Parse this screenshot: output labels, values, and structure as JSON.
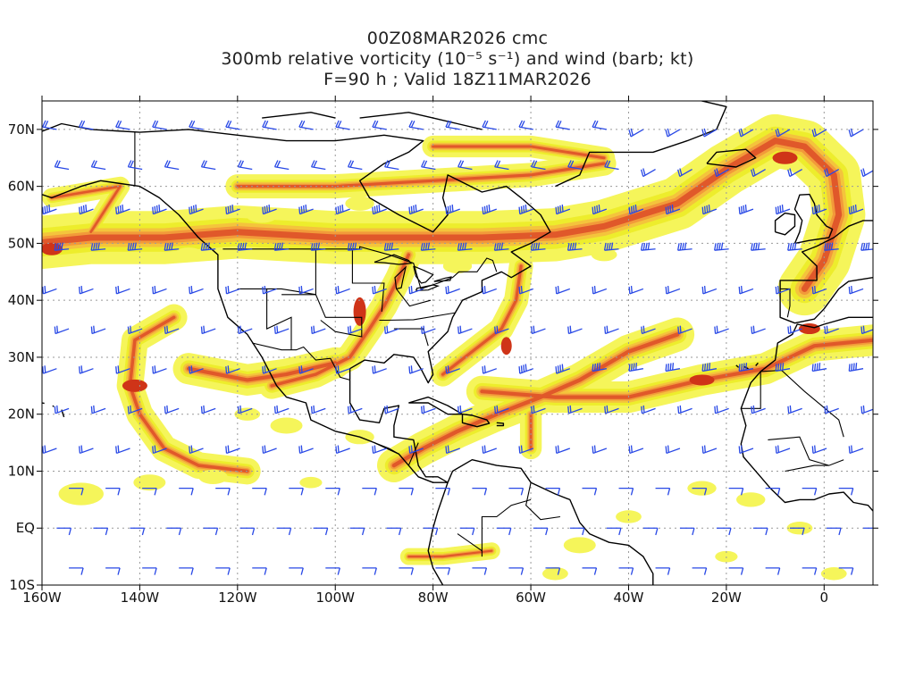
{
  "title": {
    "line1": "00Z08MAR2026 cmc",
    "line2": "300mb relative vorticity (10⁻⁵ s⁻¹) and wind (barb; kt)",
    "line3": "F=90 h ; Valid 18Z11MAR2026"
  },
  "colors": {
    "shade_light": "#f5f55a",
    "shade_yellow": "#eded2c",
    "shade_amber": "#f4c43c",
    "shade_orange": "#f29a3a",
    "shade_dark": "#e0582a",
    "shade_max": "#cf3418",
    "coast": "#000000",
    "barb": "#2848e6",
    "grid": "#9a9a9a"
  },
  "map": {
    "projection": "cylindrical",
    "lon_range": [
      -160,
      10
    ],
    "lat_range": [
      -10,
      75
    ],
    "grid": true,
    "x_ticks": [
      {
        "lon": -160,
        "label": "160W"
      },
      {
        "lon": -140,
        "label": "140W"
      },
      {
        "lon": -120,
        "label": "120W"
      },
      {
        "lon": -100,
        "label": "100W"
      },
      {
        "lon": -80,
        "label": "80W"
      },
      {
        "lon": -60,
        "label": "60W"
      },
      {
        "lon": -40,
        "label": "40W"
      },
      {
        "lon": -20,
        "label": "20W"
      },
      {
        "lon": 0,
        "label": "0"
      }
    ],
    "y_ticks": [
      {
        "lat": 70,
        "label": "70N"
      },
      {
        "lat": 60,
        "label": "60N"
      },
      {
        "lat": 50,
        "label": "50N"
      },
      {
        "lat": 40,
        "label": "40N"
      },
      {
        "lat": 30,
        "label": "30N"
      },
      {
        "lat": 20,
        "label": "20N"
      },
      {
        "lat": 10,
        "label": "10N"
      },
      {
        "lat": 0,
        "label": "EQ"
      },
      {
        "lat": -10,
        "label": "10S"
      }
    ]
  }
}
